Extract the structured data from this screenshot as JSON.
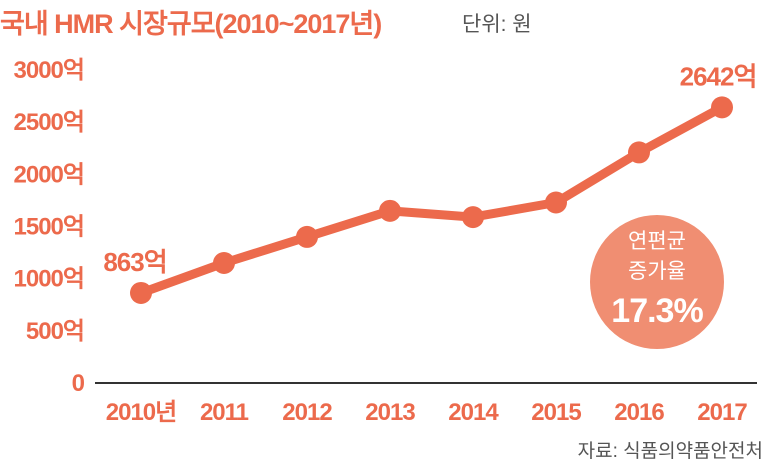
{
  "title": "국내 HMR 시장규모(2010~2017년)",
  "unit_label": "단위: 원",
  "source": "자료: 식품의약품안전처",
  "colors": {
    "accent": "#ec6a4c",
    "badge": "#f08e72",
    "axis": "#333333"
  },
  "badge": {
    "line1": "연편균",
    "line2": "증가율",
    "value": "17.3%"
  },
  "chart_data": {
    "type": "line",
    "title": "국내 HMR 시장규모(2010~2017년)",
    "xlabel": "",
    "ylabel": "",
    "categories": [
      "2010년",
      "2011",
      "2012",
      "2013",
      "2014",
      "2015",
      "2016",
      "2017"
    ],
    "values": [
      863,
      1150,
      1400,
      1650,
      1590,
      1730,
      2210,
      2642
    ],
    "ylim": [
      0,
      3000
    ],
    "yticks": [
      0,
      500,
      1000,
      1500,
      2000,
      2500,
      3000
    ],
    "ytick_labels": [
      "0",
      "500억",
      "1000억",
      "1500억",
      "2000억",
      "2500억",
      "3000억"
    ],
    "data_labels": [
      {
        "index": 0,
        "text": "863억"
      },
      {
        "index": 7,
        "text": "2642억"
      }
    ],
    "grid": false,
    "legend": "none"
  }
}
